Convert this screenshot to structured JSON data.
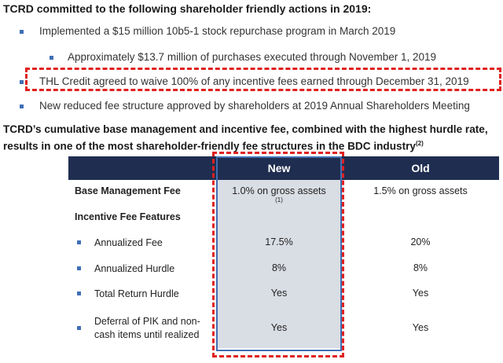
{
  "header": {
    "title": "TCRD committed to the following shareholder friendly actions in 2019:"
  },
  "bullets": [
    {
      "text": "Implemented a $15 million 10b5-1 stock repurchase program in March 2019",
      "subbullets": [
        "Approximately $13.7 million of purchases executed through November 1, 2019"
      ]
    },
    {
      "text": "THL Credit agreed to waive 100% of any incentive fees earned through December 31, 2019",
      "subbullets": []
    },
    {
      "text": "New reduced fee structure approved by shareholders at 2019 Annual Shareholders Meeting",
      "subbullets": []
    }
  ],
  "section": {
    "title": "TCRD’s cumulative base management and incentive fee, combined with the highest hurdle rate, results in one of the most shareholder-friendly fee structures in the BDC industry",
    "title_note": "(2)"
  },
  "table": {
    "columns": [
      "New",
      "Old"
    ],
    "rows": [
      {
        "label": "Base Management Fee",
        "new": "1.0% on gross assets",
        "new_note": "(1)",
        "old": "1.5% on gross assets"
      },
      {
        "label": "Incentive Fee Features"
      },
      {
        "label": "Annualized Fee",
        "new": "17.5%",
        "old": "20%"
      },
      {
        "label": "Annualized Hurdle",
        "new": "8%",
        "old": "8%"
      },
      {
        "label": "Total Return Hurdle",
        "new": "Yes",
        "old": "Yes"
      },
      {
        "label": "Deferral of PIK and non-cash items until realized",
        "new": "Yes",
        "old": "Yes"
      }
    ]
  }
}
